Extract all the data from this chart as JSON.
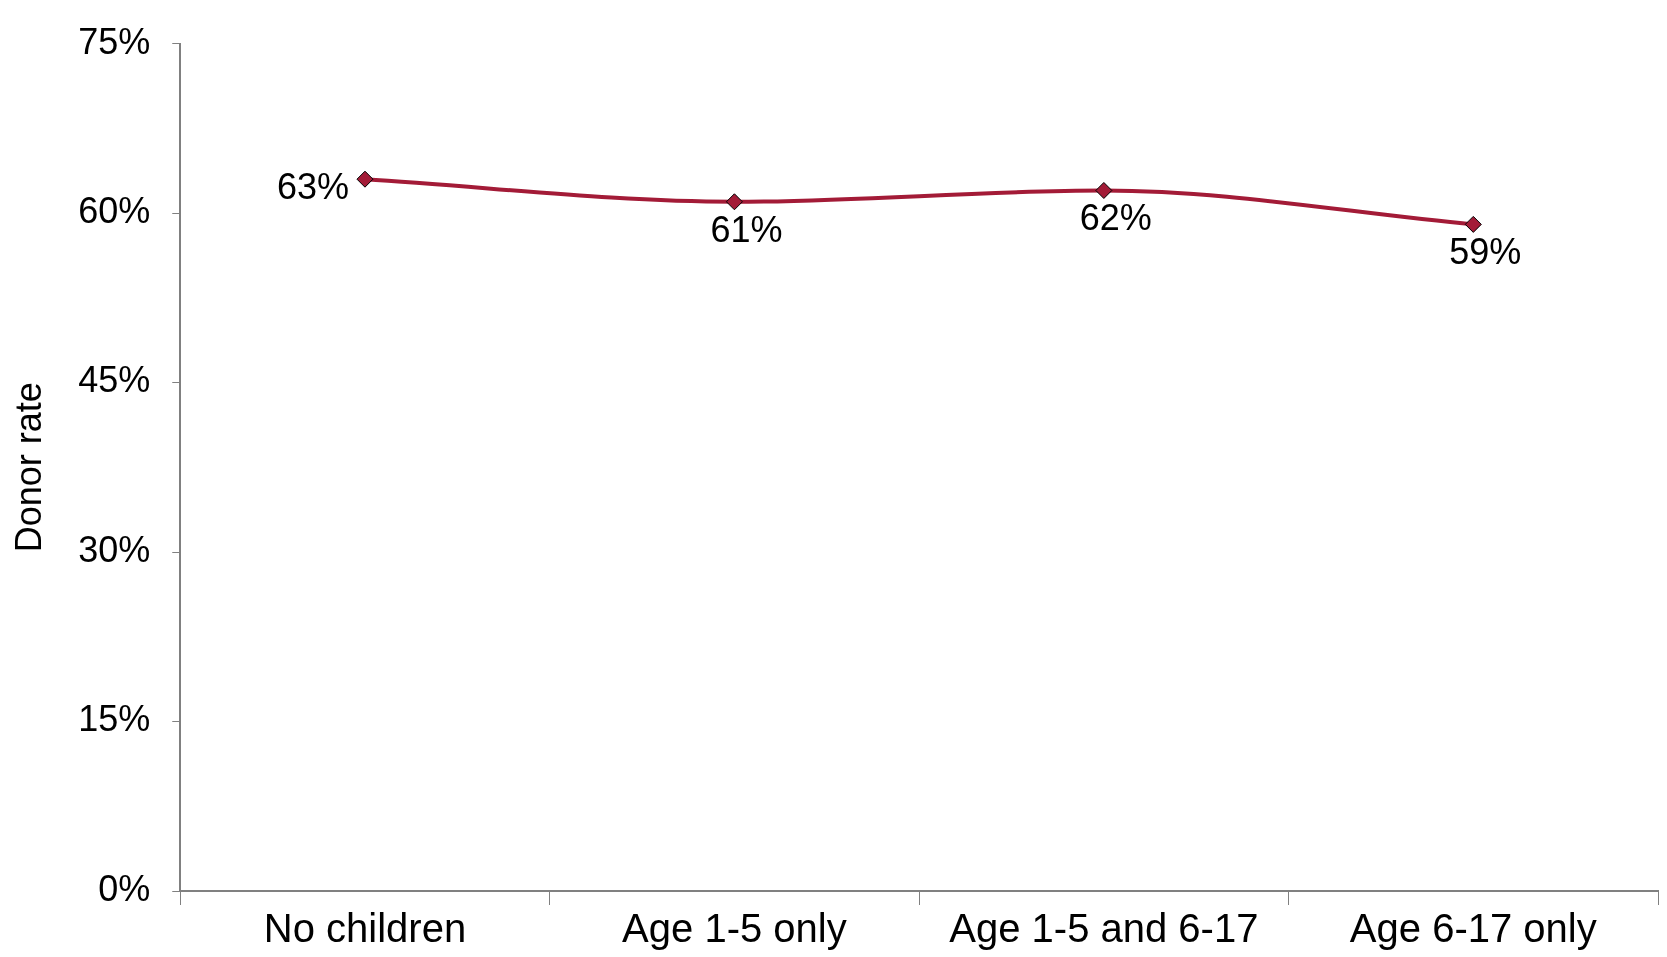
{
  "chart_data": {
    "type": "line",
    "ylabel": "Donor rate",
    "categories": [
      "No children",
      "Age 1-5 only",
      "Age 1-5 and 6-17",
      "Age 6-17 only"
    ],
    "series": [
      {
        "color": "#a31b37",
        "values": [
          63,
          61,
          62,
          59
        ],
        "value_labels": [
          "63%",
          "61%",
          "62%",
          "59%"
        ]
      }
    ],
    "ylim": [
      0,
      75
    ],
    "yticks": [
      {
        "value": 0,
        "label": "0%"
      },
      {
        "value": 15,
        "label": "15%"
      },
      {
        "value": 30,
        "label": "30%"
      },
      {
        "value": 45,
        "label": "45%"
      },
      {
        "value": 60,
        "label": "60%"
      },
      {
        "value": 75,
        "label": "75%"
      }
    ],
    "grid": false,
    "legend": false,
    "marker": "diamond",
    "line_style": "solid"
  }
}
